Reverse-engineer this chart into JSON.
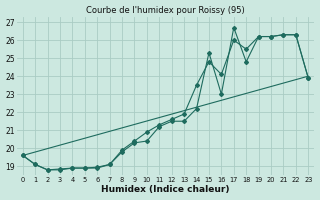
{
  "title": "Courbe de l'humidex pour Roissy (95)",
  "xlabel": "Humidex (Indice chaleur)",
  "bg_color": "#cce8e0",
  "grid_color": "#aaccc4",
  "line_color": "#1e6b5e",
  "xlim": [
    -0.5,
    23.5
  ],
  "ylim": [
    18.5,
    27.3
  ],
  "yticks": [
    19,
    20,
    21,
    22,
    23,
    24,
    25,
    26,
    27
  ],
  "xticks": [
    0,
    1,
    2,
    3,
    4,
    5,
    6,
    7,
    8,
    9,
    10,
    11,
    12,
    13,
    14,
    15,
    16,
    17,
    18,
    19,
    20,
    21,
    22,
    23
  ],
  "series1_x": [
    0,
    1,
    2,
    3,
    4,
    5,
    6,
    7,
    8,
    9,
    10,
    11,
    12,
    13,
    14,
    15,
    16,
    17,
    18,
    19,
    20,
    21,
    22,
    23
  ],
  "series1_y": [
    19.6,
    19.1,
    18.8,
    18.8,
    18.9,
    18.9,
    18.9,
    19.1,
    19.8,
    20.3,
    20.4,
    21.2,
    21.5,
    21.5,
    22.2,
    25.3,
    23.0,
    26.7,
    24.8,
    26.2,
    26.2,
    26.3,
    26.3,
    23.9
  ],
  "series2_x": [
    0,
    1,
    2,
    3,
    4,
    5,
    6,
    7,
    8,
    9,
    10,
    11,
    12,
    13,
    14,
    15,
    16,
    17,
    18,
    19,
    20,
    21,
    22,
    23
  ],
  "series2_y": [
    19.6,
    19.1,
    18.8,
    18.85,
    18.9,
    18.9,
    18.95,
    19.1,
    19.9,
    20.4,
    20.9,
    21.3,
    21.6,
    21.9,
    23.5,
    24.8,
    24.1,
    26.0,
    25.5,
    26.2,
    26.2,
    26.3,
    26.3,
    23.9
  ],
  "series3_x": [
    0,
    23
  ],
  "series3_y": [
    19.6,
    24.0
  ]
}
